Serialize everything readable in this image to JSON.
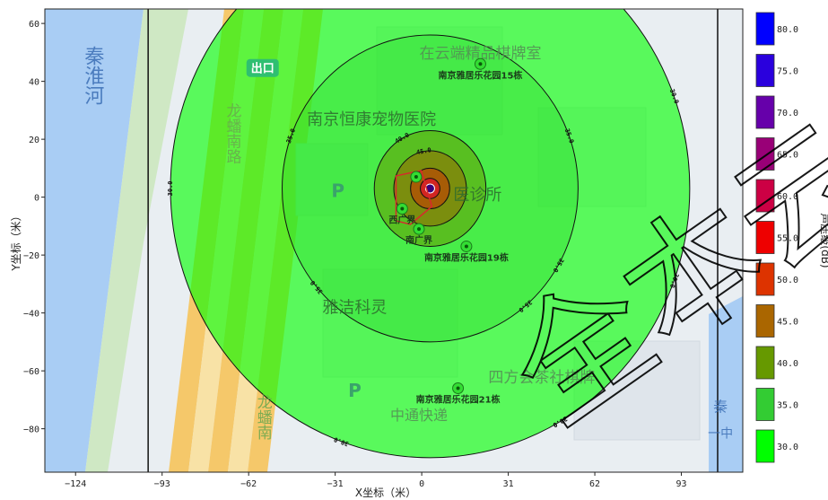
{
  "chart_data": {
    "type": "contour",
    "xlabel": "X坐标（米）",
    "ylabel": "Y坐标（米）",
    "colorbar_label": "声压级(dB)",
    "x_ticks": [
      -124,
      -93,
      -62,
      -31,
      0,
      31,
      62,
      93
    ],
    "y_ticks": [
      60,
      40,
      20,
      0,
      -20,
      -40,
      -60,
      -80
    ],
    "xlim": [
      -135,
      115
    ],
    "ylim": [
      -95,
      65
    ],
    "source": {
      "x": 3,
      "y": 3
    },
    "contours": [
      {
        "level": 30.0,
        "radius": 93,
        "color": "#00ff00",
        "label": "30.0"
      },
      {
        "level": 35.0,
        "radius": 53,
        "color": "#33dd33",
        "label": "35.0"
      },
      {
        "level": 40.0,
        "radius": 20,
        "color": "#669900",
        "label": "40.0"
      },
      {
        "level": 45.0,
        "radius": 13,
        "color": "#996600",
        "label": "45.0"
      },
      {
        "level": 50.0,
        "radius": 7,
        "color": "#cc3300",
        "label": "50.0"
      },
      {
        "level": 55.0,
        "radius": 3.5,
        "color": "#ee0033",
        "label": "55.0"
      },
      {
        "level": 60.0,
        "radius": 1.5,
        "color": "#6600aa",
        "label": "60.0"
      }
    ],
    "colorbar": [
      {
        "value": "80.0",
        "color": "#0000ff"
      },
      {
        "value": "75.0",
        "color": "#2a00dd"
      },
      {
        "value": "70.0",
        "color": "#6600aa"
      },
      {
        "value": "65.0",
        "color": "#990077"
      },
      {
        "value": "60.0",
        "color": "#cc0044"
      },
      {
        "value": "55.0",
        "color": "#ee0000"
      },
      {
        "value": "50.0",
        "color": "#dd3300"
      },
      {
        "value": "45.0",
        "color": "#aa6600"
      },
      {
        "value": "40.0",
        "color": "#669900"
      },
      {
        "value": "35.0",
        "color": "#33cc33"
      },
      {
        "value": "30.0",
        "color": "#00ff00"
      }
    ],
    "receivers": [
      {
        "name": "南京雅居乐花园15栋",
        "x": 21,
        "y": 46
      },
      {
        "name": "南京雅居乐花园19栋",
        "x": 16,
        "y": -17
      },
      {
        "name": "南京雅居乐花园21栋",
        "x": 13,
        "y": -66
      },
      {
        "name": "南广界",
        "x": -1,
        "y": -11
      },
      {
        "name": "西广界",
        "x": -7,
        "y": -4
      },
      {
        "name": "",
        "x": -2,
        "y": 7
      }
    ]
  },
  "map": {
    "labels": [
      {
        "text": "秦淮河",
        "x": -118,
        "y": 42,
        "size": 22,
        "color": "#3b6fb5",
        "vertical": true
      },
      {
        "text": "出口",
        "x": -57,
        "y": 44,
        "size": 13,
        "color": "#ffffff",
        "badge": true
      },
      {
        "text": "龙蟠南路",
        "x": -68,
        "y": 22,
        "size": 17,
        "color": "#6aa84f",
        "vertical": true
      },
      {
        "text": "在云端精品棋牌室",
        "x": 21,
        "y": 48,
        "size": 17,
        "color": "#558b55"
      },
      {
        "text": "南京恒康宠物医院",
        "x": -18,
        "y": 25,
        "size": 18,
        "color": "#2e6b2e"
      },
      {
        "text": "雅洁科灵",
        "x": -24,
        "y": -40,
        "size": 18,
        "color": "#2e6b2e"
      },
      {
        "text": "四方会茶社棋牌",
        "x": 43,
        "y": -64,
        "size": 17,
        "color": "#558b55"
      },
      {
        "text": "中通快递",
        "x": -1,
        "y": -77,
        "size": 16,
        "color": "#558b55"
      },
      {
        "text": "龙蟠南",
        "x": -57,
        "y": -76,
        "size": 17,
        "color": "#6aa84f",
        "vertical": true
      },
      {
        "text": "医诊所",
        "x": 20,
        "y": -1,
        "size": 18,
        "color": "#2e6b2e"
      },
      {
        "text": "秦",
        "x": 107,
        "y": -74,
        "size": 16,
        "color": "#3b6fb5"
      },
      {
        "text": "一中",
        "x": 107,
        "y": -83,
        "size": 14,
        "color": "#3b6fb5"
      }
    ],
    "parking": [
      {
        "text": "P",
        "x": -30,
        "y": 0
      },
      {
        "text": "P",
        "x": -24,
        "y": -69
      }
    ]
  },
  "watermark": {
    "text": "全本云"
  }
}
